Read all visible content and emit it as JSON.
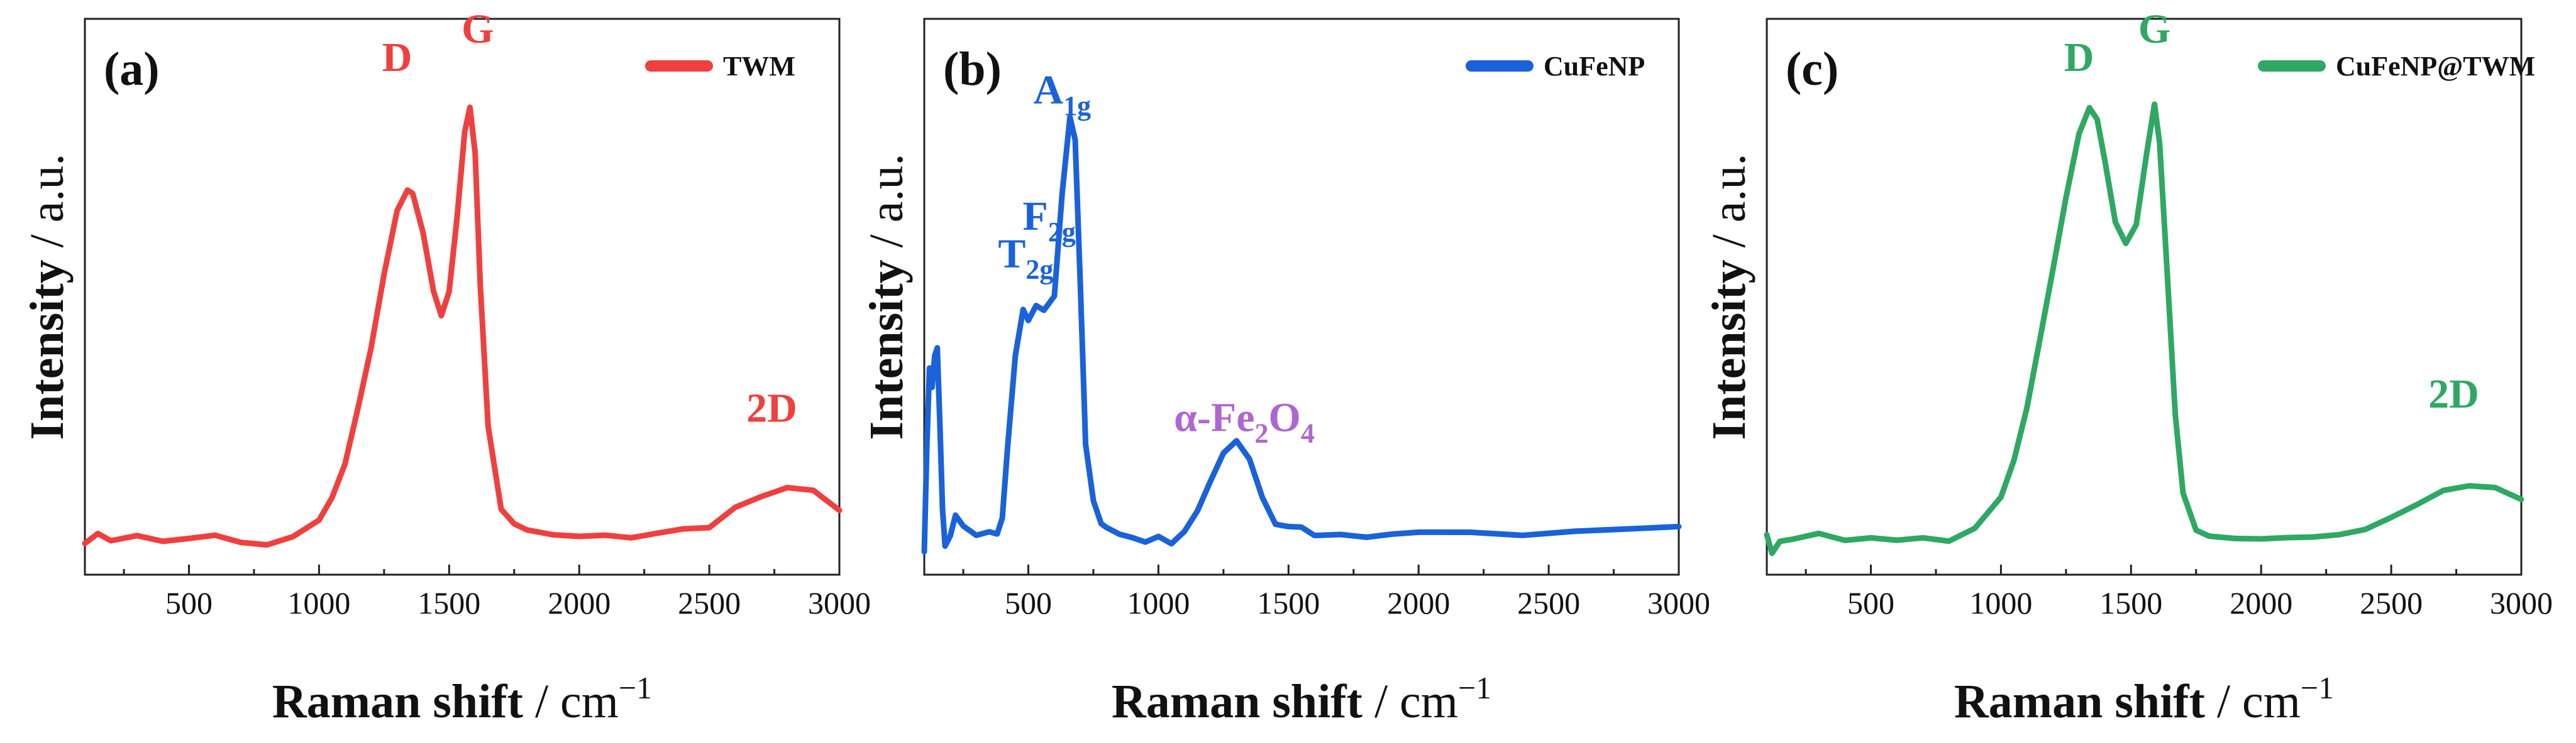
{
  "chart_data": [
    {
      "type": "line",
      "panel_label": "(a)",
      "legend": "TWM",
      "color": "#ef4040",
      "xlabel": "Raman shift",
      "xunit": "cm",
      "xunit_exp": "−1",
      "ylabel": "Intensity / a.u.",
      "xlim": [
        100,
        3000
      ],
      "ylim": [
        0,
        1
      ],
      "xticks": [
        500,
        1000,
        1500,
        2000,
        2500,
        3000
      ],
      "annotations": [
        {
          "text": "D",
          "sub": "",
          "x": 1300,
          "y": 1.05
        },
        {
          "text": "G",
          "sub": "",
          "x": 1610,
          "y": 1.11
        },
        {
          "text": "2D",
          "sub": "",
          "x": 2740,
          "y": 0.3
        }
      ],
      "x": [
        100,
        150,
        200,
        300,
        400,
        500,
        600,
        700,
        800,
        900,
        1000,
        1050,
        1100,
        1150,
        1200,
        1250,
        1300,
        1340,
        1360,
        1400,
        1440,
        1470,
        1500,
        1530,
        1560,
        1580,
        1600,
        1620,
        1650,
        1700,
        1750,
        1800,
        1900,
        2000,
        2100,
        2200,
        2300,
        2400,
        2500,
        2600,
        2700,
        2800,
        2900,
        3000
      ],
      "values": [
        0.04,
        0.05,
        0.045,
        0.05,
        0.04,
        0.045,
        0.05,
        0.04,
        0.045,
        0.06,
        0.09,
        0.14,
        0.22,
        0.33,
        0.46,
        0.61,
        0.74,
        0.79,
        0.78,
        0.7,
        0.57,
        0.52,
        0.57,
        0.74,
        0.93,
        0.98,
        0.88,
        0.6,
        0.3,
        0.12,
        0.07,
        0.06,
        0.055,
        0.05,
        0.055,
        0.045,
        0.05,
        0.06,
        0.08,
        0.12,
        0.145,
        0.16,
        0.16,
        0.12
      ]
    },
    {
      "type": "line",
      "panel_label": "(b)",
      "legend": "CuFeNP",
      "color": "#1a62d8",
      "xlabel": "Raman shift",
      "xunit": "cm",
      "xunit_exp": "−1",
      "ylabel": "Intensity / a.u.",
      "xlim": [
        100,
        3000
      ],
      "ylim": [
        0,
        1
      ],
      "xticks": [
        500,
        1000,
        1500,
        2000,
        2500,
        3000
      ],
      "annotations": [
        {
          "text": "T",
          "sub": "2g",
          "x": 490,
          "y": 0.63,
          "color": "#1a62d8"
        },
        {
          "text": "F",
          "sub": "2g",
          "x": 580,
          "y": 0.71,
          "color": "#1a62d8"
        },
        {
          "text": "A",
          "sub": "1g",
          "x": 630,
          "y": 0.98,
          "color": "#1a62d8"
        },
        {
          "text": "α-Fe",
          "sub": "2",
          "text2": "O",
          "sub2": "4",
          "x": 1330,
          "y": 0.28,
          "color": "#b066d0"
        }
      ],
      "x": [
        100,
        110,
        120,
        130,
        140,
        150,
        160,
        170,
        180,
        200,
        220,
        250,
        300,
        350,
        380,
        400,
        420,
        450,
        480,
        500,
        530,
        560,
        600,
        630,
        660,
        680,
        700,
        720,
        750,
        780,
        800,
        850,
        900,
        950,
        1000,
        1050,
        1100,
        1150,
        1200,
        1250,
        1300,
        1350,
        1400,
        1450,
        1500,
        1550,
        1600,
        1700,
        1800,
        1900,
        2000,
        2200,
        2400,
        2600,
        2800,
        3000
      ],
      "values": [
        0.02,
        0.25,
        0.42,
        0.38,
        0.45,
        0.46,
        0.3,
        0.12,
        0.04,
        0.05,
        0.1,
        0.07,
        0.05,
        0.06,
        0.05,
        0.09,
        0.25,
        0.45,
        0.54,
        0.52,
        0.55,
        0.54,
        0.58,
        0.78,
        0.94,
        0.9,
        0.58,
        0.25,
        0.12,
        0.08,
        0.07,
        0.065,
        0.06,
        0.05,
        0.06,
        0.05,
        0.07,
        0.11,
        0.17,
        0.23,
        0.25,
        0.21,
        0.13,
        0.08,
        0.07,
        0.065,
        0.06,
        0.07,
        0.06,
        0.06,
        0.065,
        0.07,
        0.065,
        0.06,
        0.07,
        0.065
      ]
    },
    {
      "type": "line",
      "panel_label": "(c)",
      "legend": "CuFeNP@TWM",
      "color": "#2fa864",
      "xlabel": "Raman shift",
      "xunit": "cm",
      "xunit_exp": "−1",
      "ylabel": "Intensity / a.u.",
      "xlim": [
        100,
        3000
      ],
      "ylim": [
        0,
        1
      ],
      "xticks": [
        500,
        1000,
        1500,
        2000,
        2500,
        3000
      ],
      "annotations": [
        {
          "text": "D",
          "sub": "",
          "x": 1300,
          "y": 1.05
        },
        {
          "text": "G",
          "sub": "",
          "x": 1590,
          "y": 1.11
        },
        {
          "text": "2D",
          "sub": "",
          "x": 2740,
          "y": 0.33
        }
      ],
      "x": [
        100,
        120,
        150,
        200,
        300,
        400,
        500,
        600,
        700,
        800,
        900,
        1000,
        1050,
        1100,
        1150,
        1200,
        1250,
        1300,
        1340,
        1370,
        1400,
        1440,
        1480,
        1520,
        1560,
        1590,
        1610,
        1640,
        1670,
        1700,
        1750,
        1800,
        1900,
        2000,
        2100,
        2200,
        2300,
        2400,
        2500,
        2600,
        2700,
        2800,
        2900,
        3000
      ],
      "values": [
        0.07,
        0.03,
        0.04,
        0.045,
        0.05,
        0.04,
        0.045,
        0.04,
        0.045,
        0.05,
        0.08,
        0.14,
        0.22,
        0.34,
        0.48,
        0.63,
        0.78,
        0.91,
        0.96,
        0.94,
        0.85,
        0.72,
        0.68,
        0.72,
        0.88,
        0.98,
        0.9,
        0.62,
        0.32,
        0.15,
        0.08,
        0.06,
        0.05,
        0.045,
        0.05,
        0.045,
        0.05,
        0.06,
        0.09,
        0.13,
        0.16,
        0.17,
        0.17,
        0.14
      ]
    }
  ]
}
